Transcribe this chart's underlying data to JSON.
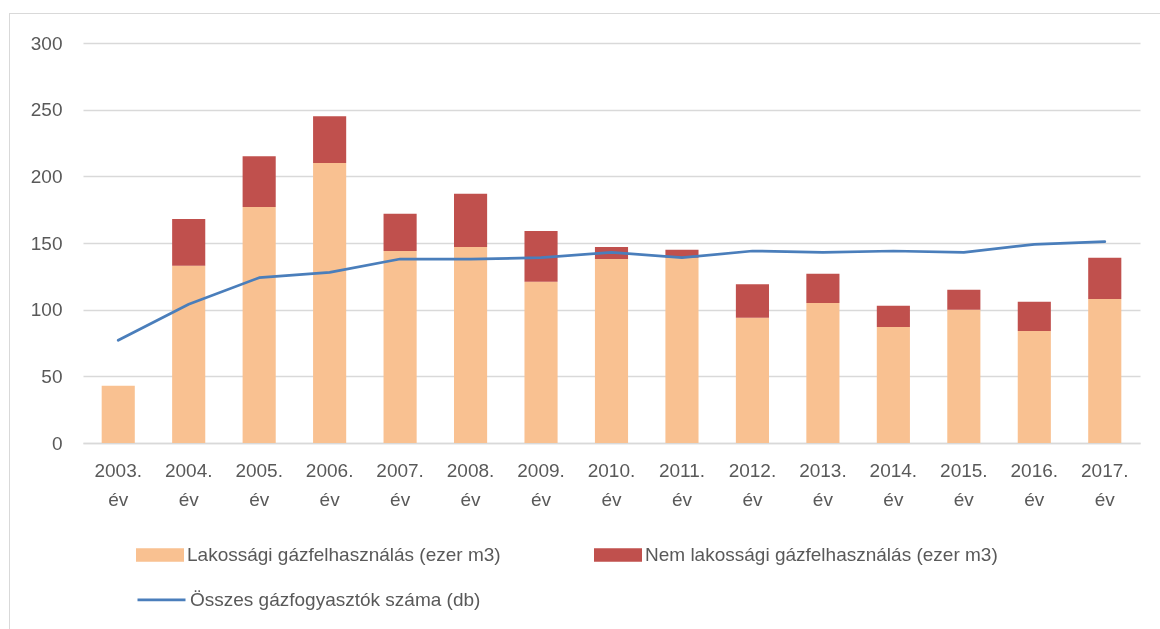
{
  "chart_data": {
    "type": "bar",
    "stacked": true,
    "categories": [
      "2003. év",
      "2004. év",
      "2005. év",
      "2006. év",
      "2007. év",
      "2008. év",
      "2009. év",
      "2010. év",
      "2011. év",
      "2012. év",
      "2013. év",
      "2014. év",
      "2015. év",
      "2016. év",
      "2017. év"
    ],
    "series": [
      {
        "name": "Lakossági gázfelhasználás (ezer m3)",
        "color": "#f9c191",
        "values": [
          43,
          133,
          177,
          210,
          144,
          147,
          121,
          138,
          139,
          94,
          105,
          87,
          100,
          84,
          108
        ]
      },
      {
        "name": "Nem lakossági gázfelhasználás (ezer m3)",
        "color": "#c0504d",
        "values": [
          null,
          35,
          38,
          35,
          28,
          40,
          38,
          9,
          6,
          25,
          22,
          16,
          15,
          22,
          31
        ]
      },
      {
        "name": "Összes gázfogyasztók száma (db)",
        "type": "line",
        "color": "#4a7ebb",
        "values": [
          77,
          104,
          124,
          128,
          138,
          138,
          139,
          143,
          139,
          144,
          143,
          144,
          143,
          149,
          151
        ]
      }
    ],
    "ylim": [
      0,
      300
    ],
    "yticks": [
      0,
      50,
      100,
      150,
      200,
      250,
      300
    ],
    "grid": "y",
    "legend": "bottom"
  }
}
